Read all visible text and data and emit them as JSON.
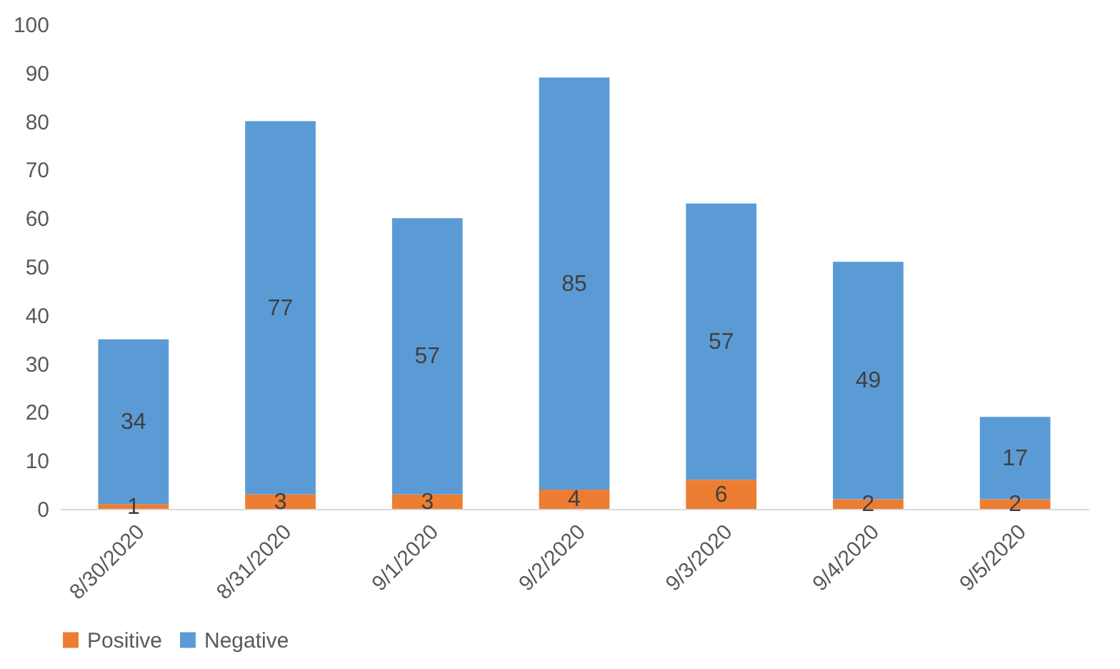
{
  "chart_data": {
    "type": "bar",
    "stacked": true,
    "categories": [
      "8/30/2020",
      "8/31/2020",
      "9/1/2020",
      "9/2/2020",
      "9/3/2020",
      "9/4/2020",
      "9/5/2020"
    ],
    "series": [
      {
        "name": "Positive",
        "color": "#ed7d31",
        "values": [
          1,
          3,
          3,
          4,
          6,
          2,
          2
        ]
      },
      {
        "name": "Negative",
        "color": "#5b9bd5",
        "values": [
          34,
          77,
          57,
          85,
          57,
          49,
          17
        ]
      }
    ],
    "ylim": [
      0,
      100
    ],
    "yticks": [
      0,
      10,
      20,
      30,
      40,
      50,
      60,
      70,
      80,
      90,
      100
    ],
    "grid": false,
    "legend": "bottom",
    "data_labels": true
  }
}
